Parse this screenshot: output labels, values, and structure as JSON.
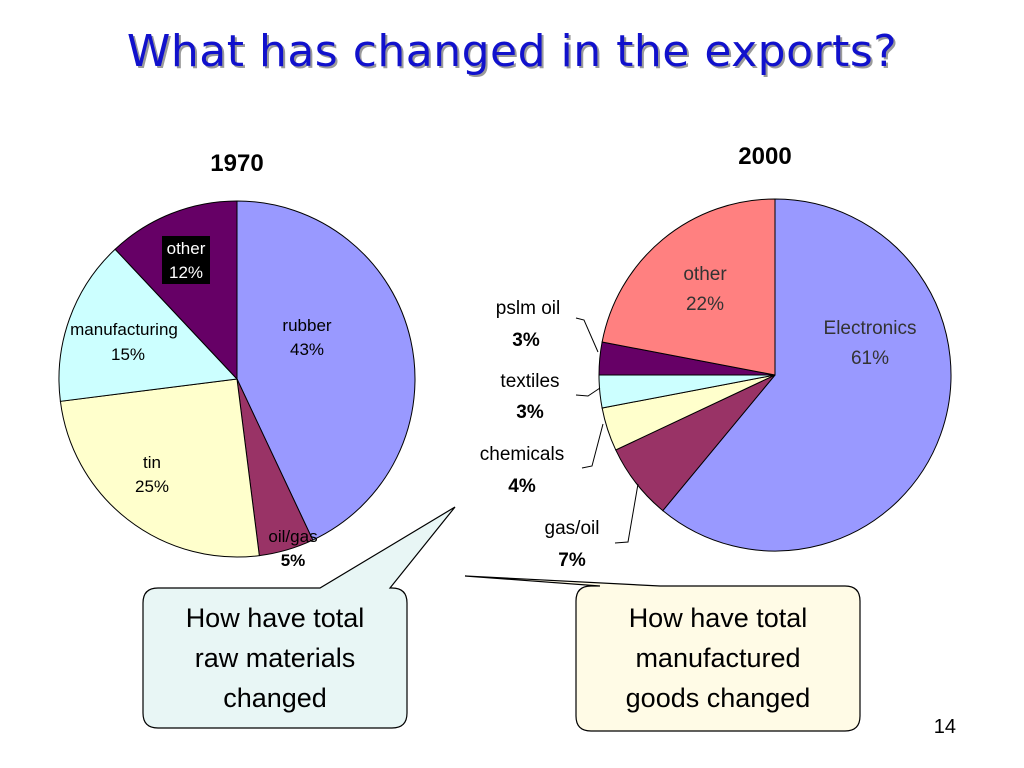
{
  "slide": {
    "title": "What has changed in the exports?",
    "page_number": "14"
  },
  "callouts": [
    {
      "lines": [
        "How have total",
        "raw materials",
        "changed"
      ],
      "fill": "#e8f6f5"
    },
    {
      "lines": [
        "How have total",
        "manufactured",
        "goods changed"
      ],
      "fill": "#fffbe6"
    }
  ],
  "chart_data": [
    {
      "type": "pie",
      "title": "1970",
      "slices": [
        {
          "label": "rubber",
          "value": 43,
          "pct_label": "43%",
          "color": "#9999ff"
        },
        {
          "label": "oil/gas",
          "value": 5,
          "pct_label": "5%",
          "color": "#993366"
        },
        {
          "label": "tin",
          "value": 25,
          "pct_label": "25%",
          "color": "#ffffcc"
        },
        {
          "label": "manufacturing",
          "value": 15,
          "pct_label": "15%",
          "color": "#ccffff"
        },
        {
          "label": "other",
          "value": 12,
          "pct_label": "12%",
          "color": "#660066"
        }
      ]
    },
    {
      "type": "pie",
      "title": "2000",
      "slices": [
        {
          "label": "Electronics",
          "value": 61,
          "pct_label": "61%",
          "color": "#9999ff"
        },
        {
          "label": "gas/oil",
          "value": 7,
          "pct_label": "7%",
          "color": "#993366"
        },
        {
          "label": "chemicals",
          "value": 4,
          "pct_label": "4%",
          "color": "#ffffcc"
        },
        {
          "label": "textiles",
          "value": 3,
          "pct_label": "3%",
          "color": "#ccffff"
        },
        {
          "label": "pslm oil",
          "value": 3,
          "pct_label": "3%",
          "color": "#660066"
        },
        {
          "label": "other",
          "value": 22,
          "pct_label": "22%",
          "color": "#ff8080"
        }
      ]
    }
  ]
}
